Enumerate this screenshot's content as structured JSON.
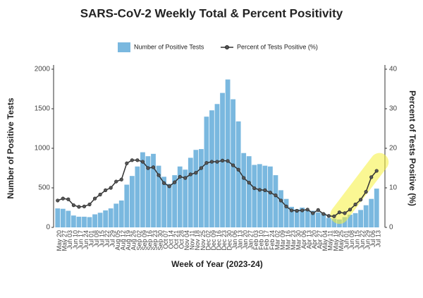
{
  "chart_data": {
    "type": "bar_line",
    "title": "SARS-CoV-2 Weekly Total & Percent Positivity",
    "x_label": "Week of Year (2023-24)",
    "y_label": "Number of Positive Tests",
    "y2_label": "Percent of Tests Positive (%)",
    "categories": [
      "May 20",
      "May 27",
      "Jun 03",
      "Jun 10",
      "Jun 17",
      "Jun 24",
      "Jul 01",
      "Jul 08",
      "Jul 15",
      "Jul 22",
      "Jul 29",
      "Aug 05",
      "Aug 12",
      "Aug 19",
      "Aug 26",
      "Sep 02",
      "Sep 09",
      "Sep 16",
      "Sep 23",
      "Sep 30",
      "Oct 07",
      "Oct 14",
      "Oct 21",
      "Oct 28",
      "Nov 04",
      "Nov 11",
      "Nov 18",
      "Nov 25",
      "Dec 02",
      "Dec 09",
      "Dec 16",
      "Dec 23",
      "Dec 30",
      "Jan 06",
      "Jan 13",
      "Jan 20",
      "Jan 27",
      "Feb 03",
      "Feb 10",
      "Feb 17",
      "Feb 24",
      "Mar 02",
      "Mar 09",
      "Mar 16",
      "Mar 23",
      "Mar 30",
      "Apr 06",
      "Apr 13",
      "Apr 20",
      "Apr 27",
      "May 04",
      "May 11",
      "May 18",
      "May 25",
      "Jun 01",
      "Jun 08",
      "Jun 15",
      "Jun 22",
      "Jun 29",
      "Jul 06",
      "Jul 13"
    ],
    "series": [
      {
        "name": "Number of Positive Tests",
        "type": "bar",
        "color": "#7ab8df",
        "values": [
          240,
          235,
          210,
          150,
          135,
          135,
          130,
          165,
          185,
          215,
          240,
          300,
          340,
          540,
          650,
          770,
          950,
          900,
          930,
          780,
          640,
          550,
          660,
          770,
          730,
          880,
          980,
          990,
          1400,
          1480,
          1560,
          1700,
          1870,
          1620,
          1340,
          940,
          900,
          790,
          800,
          780,
          770,
          660,
          470,
          360,
          260,
          230,
          250,
          220,
          210,
          190,
          180,
          120,
          110,
          100,
          130,
          160,
          180,
          220,
          280,
          360,
          490
        ]
      },
      {
        "name": "Percent of Tests Positive (%)",
        "type": "line",
        "axis": "y2",
        "color": "#333333",
        "values": [
          6.8,
          7.3,
          7.1,
          5.6,
          5.2,
          5.3,
          5.8,
          7.3,
          8.3,
          9.4,
          10,
          11.6,
          12.1,
          16.2,
          17,
          17,
          16.6,
          15,
          15.2,
          13.2,
          11.2,
          10.4,
          11.4,
          12.8,
          12.5,
          13.4,
          13.8,
          15,
          16.3,
          16.6,
          16.6,
          16.9,
          16.8,
          15.7,
          14.6,
          12.5,
          11.3,
          9.9,
          9.5,
          9.4,
          8.8,
          8.1,
          6.8,
          5.3,
          4.3,
          4.2,
          4.3,
          4.5,
          3.6,
          4.4,
          3.4,
          2.9,
          2.8,
          3.8,
          3.6,
          4.5,
          5.8,
          7,
          9,
          12.7,
          14.3
        ]
      }
    ],
    "ylim": [
      0,
      2000
    ],
    "yticks": [
      0,
      500,
      1000,
      1500,
      2000
    ],
    "y2lim": [
      0,
      40
    ],
    "y2ticks": [
      0,
      10,
      20,
      30,
      40
    ]
  }
}
